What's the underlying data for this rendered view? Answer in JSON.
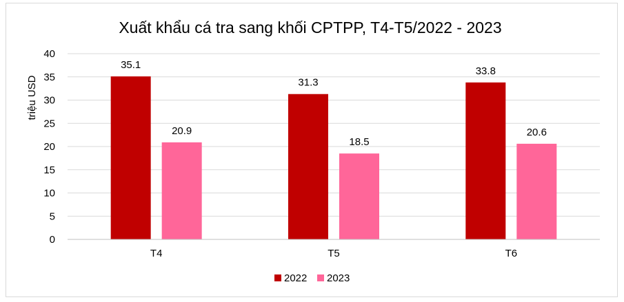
{
  "chart_data": {
    "type": "bar",
    "title": "Xuất khẩu cá tra sang khối CPTPP, T4-T5/2022 - 2023",
    "xlabel": "",
    "ylabel": "triệu USD",
    "categories": [
      "T4",
      "T5",
      "T6"
    ],
    "series": [
      {
        "name": "2022",
        "values": [
          35.1,
          31.3,
          33.8
        ],
        "color": "#c00000"
      },
      {
        "name": "2023",
        "values": [
          20.9,
          18.5,
          20.6
        ],
        "color": "#ff6699"
      }
    ],
    "ylim": [
      0,
      40
    ],
    "yticks": [
      0,
      5,
      10,
      15,
      20,
      25,
      30,
      35,
      40
    ],
    "grid": true,
    "legend": "bottom",
    "data_labels": true
  }
}
